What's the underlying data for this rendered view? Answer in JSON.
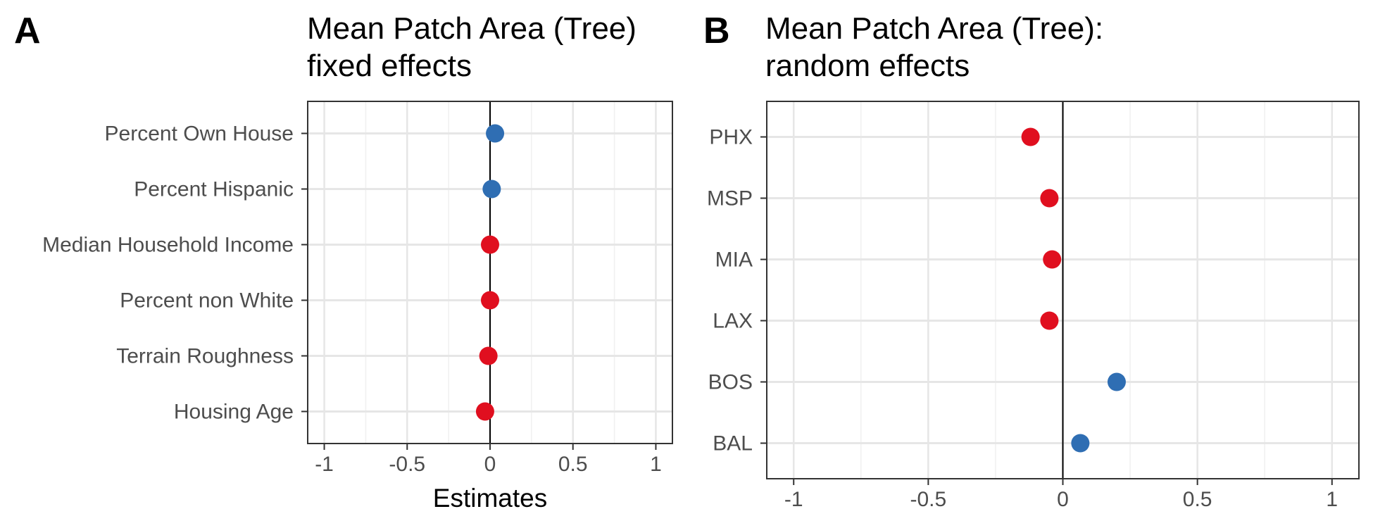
{
  "chart_data": [
    {
      "panel_label": "A",
      "type": "scatter",
      "title": "Mean Patch Area (Tree)\nfixed effects",
      "xlabel": "Estimates",
      "ylabel": "",
      "xlim": [
        -1.1,
        1.1
      ],
      "x_ticks": [
        -1,
        -0.5,
        0,
        0.5,
        1
      ],
      "x_tick_labels": [
        "-1",
        "-0.5",
        "0",
        "0.5",
        "1"
      ],
      "reference_line": 0,
      "grid": true,
      "categories": [
        "Percent Own House",
        "Percent Hispanic",
        "Median Household Income",
        "Percent non White",
        "Terrain Roughness",
        "Housing Age"
      ],
      "values": [
        0.03,
        0.01,
        0.0,
        0.0,
        -0.01,
        -0.03
      ],
      "colors": [
        "#2f6eb3",
        "#2f6eb3",
        "#e00f1f",
        "#e00f1f",
        "#e00f1f",
        "#e00f1f"
      ]
    },
    {
      "panel_label": "B",
      "type": "scatter",
      "title": "Mean Patch Area (Tree):\nrandom effects",
      "xlabel": "",
      "ylabel": "",
      "xlim": [
        -1.1,
        1.1
      ],
      "x_ticks": [
        -1,
        -0.5,
        0,
        0.5,
        1
      ],
      "x_tick_labels": [
        "-1",
        "-0.5",
        "0",
        "0.5",
        "1"
      ],
      "reference_line": 0,
      "grid": true,
      "categories": [
        "PHX",
        "MSP",
        "MIA",
        "LAX",
        "BOS",
        "BAL"
      ],
      "values": [
        -0.12,
        -0.05,
        -0.04,
        -0.05,
        0.2,
        0.065
      ],
      "colors": [
        "#e00f1f",
        "#e00f1f",
        "#e00f1f",
        "#e00f1f",
        "#2f6eb3",
        "#2f6eb3"
      ]
    }
  ]
}
